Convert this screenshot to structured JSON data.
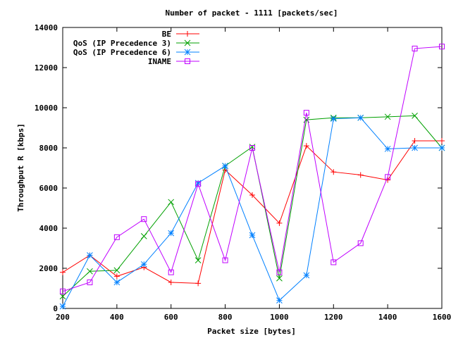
{
  "chart_data": {
    "type": "line",
    "title": "Number of packet - 1111 [packets/sec]",
    "xlabel": "Packet size [bytes]",
    "ylabel": "Throughput R [kbps]",
    "xlim": [
      200,
      1600
    ],
    "ylim": [
      0,
      14000
    ],
    "xticks": [
      200,
      400,
      600,
      800,
      1000,
      1200,
      1400,
      1600
    ],
    "yticks": [
      0,
      2000,
      4000,
      6000,
      8000,
      10000,
      12000,
      14000
    ],
    "x": [
      200,
      300,
      400,
      500,
      600,
      700,
      800,
      900,
      1000,
      1100,
      1200,
      1300,
      1400,
      1500,
      1600
    ],
    "legend_position": "top-left",
    "grid": false,
    "series": [
      {
        "name": "BE",
        "color": "#ff0000",
        "marker": "plus",
        "values": [
          1800,
          2650,
          1600,
          2050,
          1300,
          1250,
          6900,
          5650,
          4250,
          8100,
          6800,
          6650,
          6400,
          8350,
          8350
        ]
      },
      {
        "name": "QoS (IP Precedence 3)",
        "color": "#00a000",
        "marker": "cross",
        "values": [
          600,
          1850,
          1900,
          3600,
          5300,
          2400,
          7100,
          8050,
          1500,
          9400,
          9500,
          9500,
          9550,
          9600,
          8000
        ]
      },
      {
        "name": "QoS (IP Precedence 6)",
        "color": "#0080ff",
        "marker": "star",
        "values": [
          100,
          2650,
          1300,
          2200,
          3750,
          6250,
          7100,
          3650,
          400,
          1650,
          9450,
          9500,
          7950,
          8000,
          8000
        ]
      },
      {
        "name": "INAME",
        "color": "#c000ff",
        "marker": "square",
        "values": [
          850,
          1300,
          3550,
          4450,
          1800,
          6200,
          2400,
          8000,
          1800,
          9750,
          2300,
          3250,
          6550,
          12950,
          13050
        ]
      }
    ]
  }
}
